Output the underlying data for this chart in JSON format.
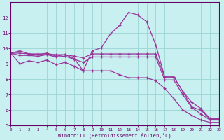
{
  "xlabel": "Windchill (Refroidissement éolien,°C)",
  "background_color": "#c8f0f0",
  "grid_color": "#a0d8d8",
  "line_color": "#993399",
  "xlim": [
    0,
    23
  ],
  "ylim": [
    5,
    13
  ],
  "xticks": [
    0,
    1,
    2,
    3,
    4,
    5,
    6,
    7,
    8,
    9,
    10,
    11,
    12,
    13,
    14,
    15,
    16,
    17,
    18,
    19,
    20,
    21,
    22,
    23
  ],
  "yticks": [
    5,
    6,
    7,
    8,
    9,
    10,
    11,
    12
  ],
  "line1_x": [
    0,
    1,
    2,
    3,
    4,
    5,
    6,
    7,
    8,
    9,
    10,
    11,
    12,
    13,
    14,
    15,
    16,
    17,
    18,
    19,
    20,
    21,
    22,
    23
  ],
  "line1_y": [
    9.7,
    9.85,
    9.65,
    9.6,
    9.7,
    9.5,
    9.6,
    9.35,
    8.55,
    9.85,
    10.05,
    10.95,
    11.5,
    12.35,
    12.2,
    11.75,
    10.25,
    8.15,
    8.15,
    7.2,
    6.2,
    6.0,
    5.4,
    5.4
  ],
  "line2_x": [
    0,
    1,
    2,
    3,
    4,
    5,
    6,
    7,
    8,
    9,
    10,
    11,
    12,
    13,
    14,
    15,
    16,
    17,
    18,
    19,
    20,
    21,
    22,
    23
  ],
  "line2_y": [
    9.7,
    9.7,
    9.65,
    9.65,
    9.65,
    9.6,
    9.6,
    9.5,
    9.4,
    9.65,
    9.65,
    9.65,
    9.65,
    9.65,
    9.65,
    9.65,
    9.65,
    8.15,
    8.15,
    7.2,
    6.5,
    6.1,
    5.45,
    5.45
  ],
  "line3_x": [
    0,
    1,
    2,
    3,
    4,
    5,
    6,
    7,
    8,
    9,
    10,
    11,
    12,
    13,
    14,
    15,
    16,
    17,
    18,
    19,
    20,
    21,
    22,
    23
  ],
  "line3_y": [
    9.7,
    9.55,
    9.55,
    9.5,
    9.6,
    9.45,
    9.5,
    9.3,
    9.1,
    9.45,
    9.45,
    9.45,
    9.45,
    9.45,
    9.45,
    9.45,
    9.45,
    7.95,
    7.95,
    7.0,
    6.15,
    5.75,
    5.35,
    5.35
  ],
  "line4_x": [
    0,
    1,
    2,
    3,
    4,
    5,
    6,
    7,
    8,
    9,
    10,
    11,
    12,
    13,
    14,
    15,
    16,
    17,
    18,
    19,
    20,
    21,
    22,
    23
  ],
  "line4_y": [
    9.7,
    9.0,
    9.2,
    9.1,
    9.25,
    8.95,
    9.1,
    8.85,
    8.55,
    8.55,
    8.55,
    8.55,
    8.3,
    8.1,
    8.1,
    8.1,
    7.9,
    7.4,
    6.75,
    6.0,
    5.65,
    5.35,
    5.2,
    5.2
  ]
}
